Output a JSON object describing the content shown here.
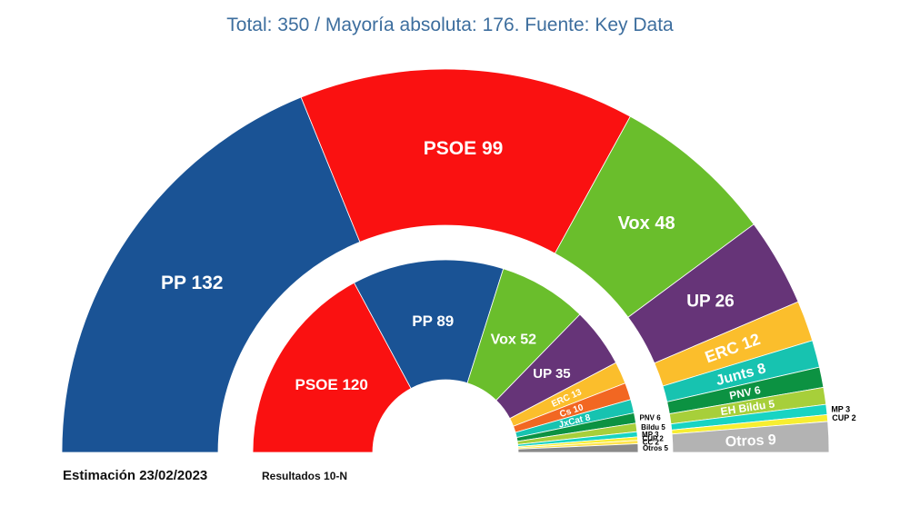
{
  "header": {
    "title": "Total: 350 / Mayoría absoluta: 176. Fuente: Key Data"
  },
  "footer": {
    "estimate_label": "Estimación 23/02/2023",
    "results_label": "Resultados 10-N"
  },
  "chart_data": [
    {
      "type": "pie",
      "title": "Estimación 23/02/2023",
      "total": 350,
      "seats": [
        {
          "party": "PP",
          "label": "PP 132",
          "value": 132,
          "color": "#1a5395"
        },
        {
          "party": "PSOE",
          "label": "PSOE 99",
          "value": 99,
          "color": "#fa1111"
        },
        {
          "party": "Vox",
          "label": "Vox 48",
          "value": 48,
          "color": "#6abe2c"
        },
        {
          "party": "UP",
          "label": "UP 26",
          "value": 26,
          "color": "#663478"
        },
        {
          "party": "ERC",
          "label": "ERC 12",
          "value": 12,
          "color": "#fbbe2c"
        },
        {
          "party": "Junts",
          "label": "Junts 8",
          "value": 8,
          "color": "#17c3b0"
        },
        {
          "party": "PNV",
          "label": "PNV 6",
          "value": 6,
          "color": "#0c9242"
        },
        {
          "party": "EH Bildu",
          "label": "EH Bildu 5",
          "value": 5,
          "color": "#a7cf3a"
        },
        {
          "party": "MP",
          "label": "MP 3",
          "value": 3,
          "color": "#18d4c3"
        },
        {
          "party": "CUP",
          "label": "CUP 2",
          "value": 2,
          "color": "#f7ee31"
        },
        {
          "party": "Otros",
          "label": "Otros 9",
          "value": 9,
          "color": "#b3b3b3"
        }
      ]
    },
    {
      "type": "pie",
      "title": "Resultados 10-N",
      "total": 350,
      "seats": [
        {
          "party": "PSOE",
          "label": "PSOE 120",
          "value": 120,
          "color": "#fa1111"
        },
        {
          "party": "PP",
          "label": "PP 89",
          "value": 89,
          "color": "#1a5395"
        },
        {
          "party": "Vox",
          "label": "Vox 52",
          "value": 52,
          "color": "#6abe2c"
        },
        {
          "party": "UP",
          "label": "UP 35",
          "value": 35,
          "color": "#663478"
        },
        {
          "party": "ERC",
          "label": "ERC 13",
          "value": 13,
          "color": "#fbbe2c"
        },
        {
          "party": "Cs",
          "label": "Cs 10",
          "value": 10,
          "color": "#f26722"
        },
        {
          "party": "JxCat",
          "label": "JxCat 8",
          "value": 8,
          "color": "#17c3b0"
        },
        {
          "party": "PNV",
          "label": "PNV 6",
          "value": 6,
          "color": "#0c9242"
        },
        {
          "party": "Bildu",
          "label": "Bildu 5",
          "value": 5,
          "color": "#a7cf3a"
        },
        {
          "party": "MP",
          "label": "MP 3",
          "value": 3,
          "color": "#18d4c3"
        },
        {
          "party": "CUP",
          "label": "CUP 2",
          "value": 2,
          "color": "#f7ee31"
        },
        {
          "party": "CC",
          "label": "CC 2",
          "value": 2,
          "color": "#ffe44d"
        },
        {
          "party": "Otros",
          "label": "Otros 5",
          "value": 5,
          "color": "#8a8a8a"
        }
      ]
    }
  ]
}
